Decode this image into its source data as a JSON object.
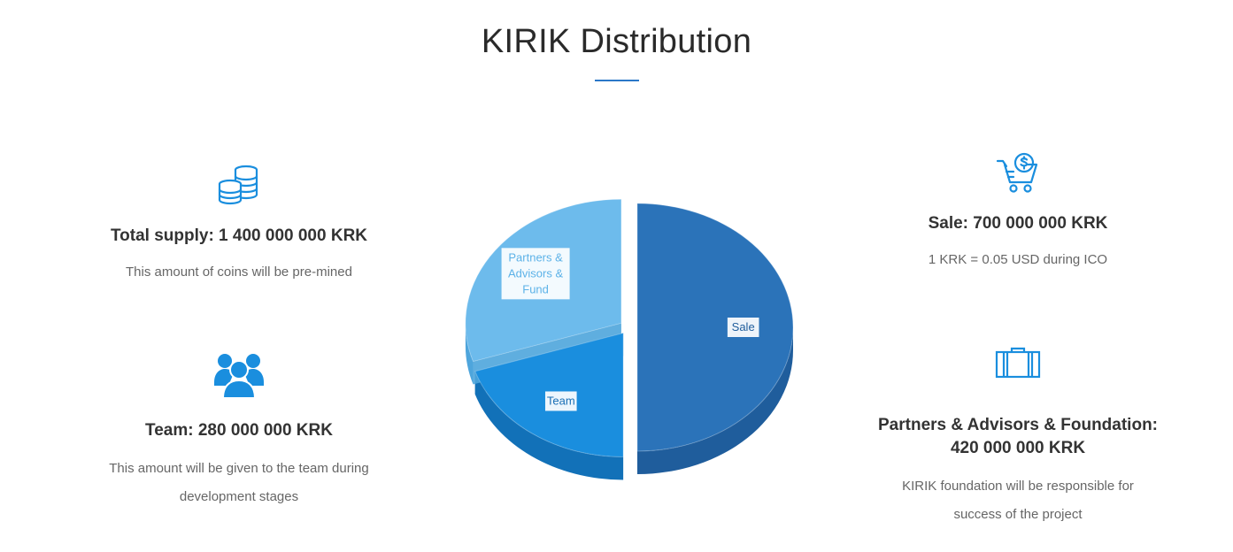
{
  "page": {
    "title": "KIRIK Distribution",
    "accent_color": "#2b78c8"
  },
  "left": {
    "supply": {
      "icon": "coins-icon",
      "heading": "Total supply: 1 400 000 000 KRK",
      "text": "This amount of coins will be pre-mined"
    },
    "team": {
      "icon": "team-icon",
      "heading": "Team: 280 000 000 KRK",
      "text_line1": "This amount will be given to the team during",
      "text_line2": "development stages"
    }
  },
  "right": {
    "sale": {
      "icon": "shopping-cart-dollar-icon",
      "heading": "Sale: 700 000 000 KRK",
      "text": "1 KRK = 0.05 USD during ICO"
    },
    "partners": {
      "icon": "briefcase-icon",
      "heading_line1": "Partners & Advisors & Foundation:",
      "heading_line2": "420 000 000 KRK",
      "text_line1": "KIRIK foundation will be responsible for",
      "text_line2": "success of the project"
    }
  },
  "chart_data": {
    "type": "pie",
    "style": "3d-exploded",
    "categories": [
      "Sale",
      "Team",
      "Partners & Advisors & Fund"
    ],
    "values": [
      700000000,
      280000000,
      420000000
    ],
    "percent": [
      50,
      20,
      30
    ],
    "colors": [
      "#2b73b9",
      "#1a8ede",
      "#6dbbec"
    ],
    "side_colors": [
      "#1f5d9c",
      "#1271b8",
      "#4ea5dc"
    ],
    "labels": [
      {
        "series": "Sale",
        "lines": [
          "Sale"
        ],
        "color": "#1f5d9c"
      },
      {
        "series": "Team",
        "lines": [
          "Team"
        ],
        "color": "#1a6fb5"
      },
      {
        "series": "Partners & Advisors & Fund",
        "lines": [
          "Partners &",
          "Advisors &",
          "Fund"
        ],
        "color": "#5cb2e8"
      }
    ]
  }
}
